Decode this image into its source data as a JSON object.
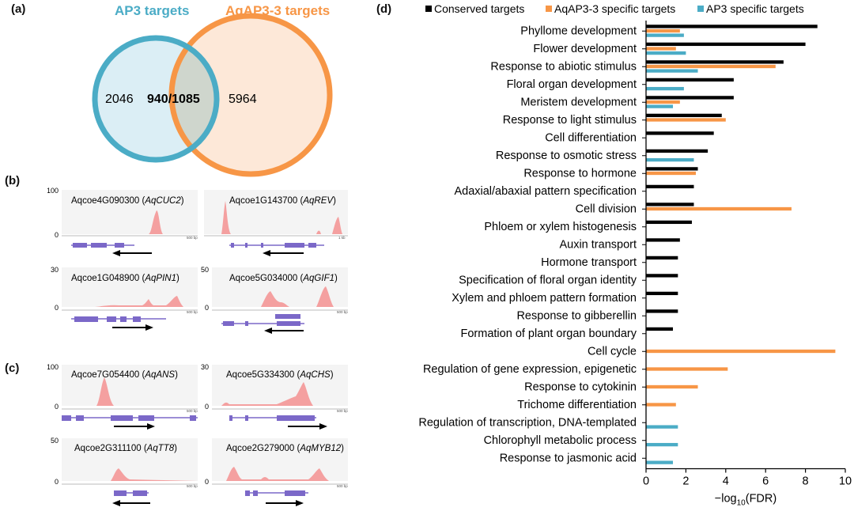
{
  "panels": {
    "a": "(a)",
    "b": "(b)",
    "c": "(c)",
    "d": "(d)"
  },
  "venn": {
    "left_title": "AP3 targets",
    "right_title": "AqAP3-3 targets",
    "left_only": "2046",
    "overlap": "940/1085",
    "right_only": "5964",
    "colors": {
      "ap3": "#4bacc6",
      "aqap3": "#f79646"
    }
  },
  "tracks_b": [
    {
      "id": "Aqcoe4G090300",
      "gene": "AqCUC2",
      "ymax": "100",
      "ymin": "0",
      "scale": "500 bp",
      "direction": "left"
    },
    {
      "id": "Aqcoe1G143700",
      "gene": "AqREV",
      "ymax": "",
      "ymin": "",
      "scale": "1 kb",
      "direction": "left"
    },
    {
      "id": "Aqcoe1G048900",
      "gene": "AqPIN1",
      "ymax": "30",
      "ymin": "0",
      "scale": "500 bp",
      "direction": "right"
    },
    {
      "id": "Aqcoe5G034000",
      "gene": "AqGIF1",
      "ymax": "50",
      "ymin": "0",
      "scale": "500 bp",
      "direction": "left"
    }
  ],
  "tracks_c": [
    {
      "id": "Aqcoe7G054400",
      "gene": "AqANS",
      "ymax": "100",
      "ymin": "0",
      "scale": "500 bp",
      "direction": "right"
    },
    {
      "id": "Aqcoe5G334300",
      "gene": "AqCHS",
      "ymax": "30",
      "ymin": "0",
      "scale": "500 bp",
      "direction": "right"
    },
    {
      "id": "Aqcoe2G311100",
      "gene": "AqTT8",
      "ymax": "50",
      "ymin": "0",
      "scale": "500 bp",
      "direction": "left"
    },
    {
      "id": "Aqcoe2G279000",
      "gene": "AqMYB12",
      "ymax": "",
      "ymin": "0",
      "scale": "500 bp",
      "direction": "right"
    }
  ],
  "chart_data": {
    "type": "bar",
    "orientation": "horizontal",
    "xlabel": "−log10(FDR)",
    "xlim": [
      0,
      10
    ],
    "xticks": [
      "0",
      "2",
      "4",
      "6",
      "8",
      "10"
    ],
    "legend": [
      "Conserved targets",
      "AqAP3-3 specific targets",
      "AP3 specific targets"
    ],
    "legend_position": "top",
    "colors": [
      "#000000",
      "#f79646",
      "#4bacc6"
    ],
    "categories": [
      "Phyllome development",
      "Flower development",
      "Response to abiotic stimulus",
      "Floral organ development",
      "Meristem development",
      "Response to light stimulus",
      "Cell differentiation",
      "Response to osmotic stress",
      "Response to hormone",
      "Adaxial/abaxial pattern specification",
      "Cell division",
      "Phloem or xylem histogenesis",
      "Auxin transport",
      "Hormone transport",
      "Specification of floral organ identity",
      "Xylem and phloem pattern formation",
      "Response to gibberellin",
      "Formation of plant organ boundary",
      "Cell cycle",
      "Regulation of gene expression, epigenetic",
      "Response to cytokinin",
      "Trichome differentiation",
      "Regulation of transcription, DNA-templated",
      "Chlorophyll metabolic process",
      "Response to jasmonic acid"
    ],
    "series": [
      {
        "name": "Conserved targets",
        "values": [
          8.6,
          8.0,
          6.9,
          4.4,
          4.4,
          3.8,
          3.4,
          3.1,
          2.6,
          2.4,
          2.4,
          2.3,
          1.7,
          1.6,
          1.6,
          1.6,
          1.6,
          1.35,
          null,
          null,
          null,
          null,
          null,
          null,
          null
        ]
      },
      {
        "name": "AqAP3-3 specific targets",
        "values": [
          1.7,
          1.5,
          6.5,
          null,
          1.7,
          4.0,
          null,
          null,
          2.5,
          null,
          7.3,
          null,
          null,
          null,
          null,
          null,
          null,
          null,
          9.5,
          4.1,
          2.6,
          1.5,
          null,
          null,
          null
        ]
      },
      {
        "name": "AP3 specific targets",
        "values": [
          1.9,
          2.0,
          2.6,
          1.9,
          1.35,
          null,
          null,
          2.4,
          null,
          null,
          null,
          null,
          null,
          null,
          null,
          null,
          null,
          null,
          null,
          null,
          null,
          null,
          1.6,
          1.6,
          1.35
        ]
      }
    ]
  }
}
